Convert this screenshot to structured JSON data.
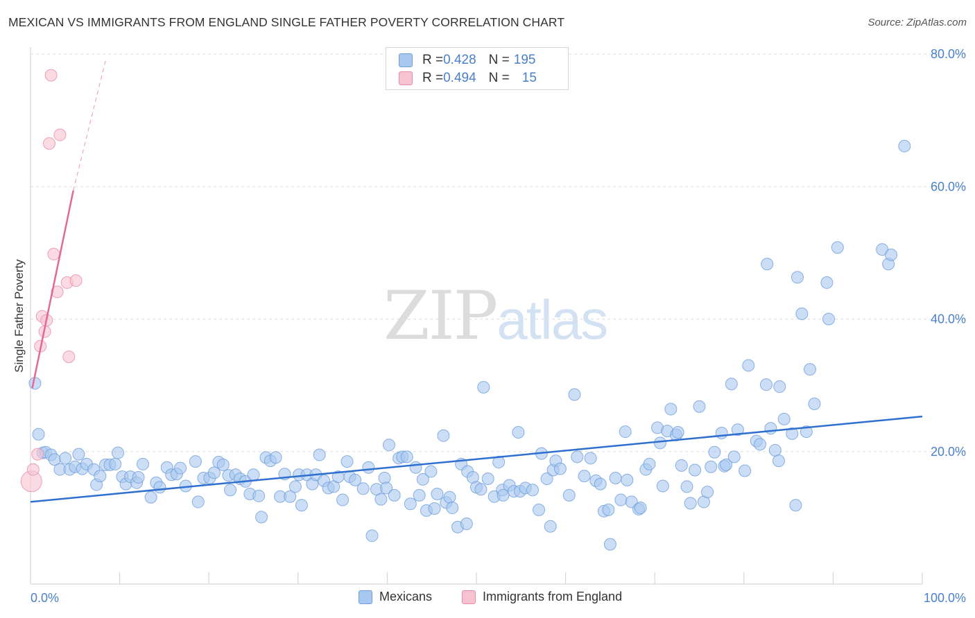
{
  "title": "MEXICAN VS IMMIGRANTS FROM ENGLAND SINGLE FATHER POVERTY CORRELATION CHART",
  "source": "Source: ZipAtlas.com",
  "watermark": {
    "zip": "ZIP",
    "atlas": "atlas"
  },
  "legend": {
    "rows": [
      {
        "r_label": "R = ",
        "r_value": "0.428",
        "n_label": "N = ",
        "n_value": "195",
        "color": "#a9c8ef",
        "border": "#6f9ddb"
      },
      {
        "r_label": "R = ",
        "r_value": "0.494",
        "n_label": "N = ",
        "n_value": "15",
        "color": "#f7c3d2",
        "border": "#e98aa7"
      }
    ]
  },
  "bottom_legend": [
    {
      "label": "Mexicans",
      "color": "#a9c8ef",
      "border": "#6f9ddb"
    },
    {
      "label": "Immigrants from England",
      "color": "#f7c3d2",
      "border": "#e98aa7"
    }
  ],
  "chart_data": {
    "type": "scatter",
    "title": "MEXICAN VS IMMIGRANTS FROM ENGLAND SINGLE FATHER POVERTY CORRELATION CHART",
    "xlabel": "",
    "ylabel": "Single Father Poverty",
    "xlim": [
      0,
      100
    ],
    "ylim": [
      0,
      80
    ],
    "x_tick_labels": [
      "0.0%",
      "100.0%"
    ],
    "y_ticks": [
      20,
      40,
      60,
      80
    ],
    "y_tick_labels": [
      "20.0%",
      "40.0%",
      "60.0%",
      "80.0%"
    ],
    "grid": "horizontal dashed",
    "legend_placement": "top-center",
    "series": [
      {
        "name": "Mexicans",
        "color": "#a9c8ef",
        "edge": "#6f9ddb",
        "trend": {
          "x": [
            0,
            100
          ],
          "y": [
            12.4,
            25.3
          ],
          "color": "#2f6fd0"
        },
        "points": [
          [
            0.5,
            30.3
          ],
          [
            0.9,
            22.6
          ],
          [
            1.4,
            19.8
          ],
          [
            1.7,
            19.9
          ],
          [
            2.3,
            19.5
          ],
          [
            2.7,
            18.8
          ],
          [
            3.3,
            17.3
          ],
          [
            3.9,
            19.0
          ],
          [
            4.4,
            17.3
          ],
          [
            5.0,
            17.7
          ],
          [
            5.4,
            19.6
          ],
          [
            5.8,
            17.4
          ],
          [
            6.3,
            18.1
          ],
          [
            7.1,
            17.3
          ],
          [
            7.4,
            15.0
          ],
          [
            7.8,
            16.3
          ],
          [
            8.4,
            18.0
          ],
          [
            8.9,
            18.0
          ],
          [
            9.5,
            18.1
          ],
          [
            9.8,
            19.8
          ],
          [
            10.3,
            16.2
          ],
          [
            10.7,
            15.1
          ],
          [
            11.2,
            16.2
          ],
          [
            11.9,
            15.3
          ],
          [
            12.1,
            16.1
          ],
          [
            12.6,
            18.1
          ],
          [
            13.5,
            13.1
          ],
          [
            14.1,
            15.3
          ],
          [
            14.5,
            14.6
          ],
          [
            15.3,
            17.6
          ],
          [
            15.8,
            16.5
          ],
          [
            16.4,
            16.6
          ],
          [
            16.8,
            17.5
          ],
          [
            17.4,
            14.8
          ],
          [
            18.5,
            18.5
          ],
          [
            18.8,
            12.4
          ],
          [
            19.4,
            16.0
          ],
          [
            20.1,
            16.0
          ],
          [
            20.6,
            16.8
          ],
          [
            21.1,
            18.4
          ],
          [
            21.6,
            18.0
          ],
          [
            22.2,
            16.4
          ],
          [
            22.4,
            14.2
          ],
          [
            23.0,
            16.5
          ],
          [
            23.5,
            15.9
          ],
          [
            24.1,
            15.5
          ],
          [
            24.6,
            13.6
          ],
          [
            25.0,
            16.5
          ],
          [
            25.6,
            13.3
          ],
          [
            25.9,
            10.1
          ],
          [
            26.4,
            19.1
          ],
          [
            26.9,
            18.6
          ],
          [
            27.5,
            19.1
          ],
          [
            28.0,
            13.2
          ],
          [
            28.5,
            16.6
          ],
          [
            29.1,
            13.2
          ],
          [
            29.7,
            14.7
          ],
          [
            30.1,
            16.5
          ],
          [
            30.4,
            11.9
          ],
          [
            31.0,
            16.5
          ],
          [
            31.6,
            15.1
          ],
          [
            32.0,
            16.5
          ],
          [
            32.4,
            19.5
          ],
          [
            32.9,
            15.6
          ],
          [
            33.4,
            14.5
          ],
          [
            34.0,
            14.7
          ],
          [
            34.5,
            16.2
          ],
          [
            35.0,
            12.7
          ],
          [
            35.5,
            18.5
          ],
          [
            35.8,
            16.2
          ],
          [
            36.4,
            15.7
          ],
          [
            37.3,
            14.4
          ],
          [
            37.9,
            17.6
          ],
          [
            38.3,
            7.3
          ],
          [
            38.8,
            14.3
          ],
          [
            39.3,
            12.8
          ],
          [
            39.7,
            16.0
          ],
          [
            39.9,
            14.5
          ],
          [
            40.2,
            21.0
          ],
          [
            40.8,
            13.4
          ],
          [
            41.3,
            19.0
          ],
          [
            41.7,
            19.2
          ],
          [
            42.2,
            19.2
          ],
          [
            42.6,
            12.1
          ],
          [
            43.2,
            17.6
          ],
          [
            43.6,
            13.4
          ],
          [
            44.0,
            15.8
          ],
          [
            44.4,
            11.1
          ],
          [
            44.9,
            17.0
          ],
          [
            45.3,
            11.4
          ],
          [
            45.6,
            13.6
          ],
          [
            46.3,
            22.4
          ],
          [
            46.6,
            12.3
          ],
          [
            47.0,
            13.1
          ],
          [
            47.3,
            11.5
          ],
          [
            47.9,
            8.6
          ],
          [
            48.3,
            18.1
          ],
          [
            48.9,
            9.1
          ],
          [
            49.0,
            17.0
          ],
          [
            49.6,
            16.1
          ],
          [
            50.0,
            14.6
          ],
          [
            50.5,
            14.3
          ],
          [
            50.8,
            29.7
          ],
          [
            51.3,
            15.9
          ],
          [
            52.0,
            13.2
          ],
          [
            52.5,
            18.4
          ],
          [
            52.9,
            14.2
          ],
          [
            53.0,
            13.4
          ],
          [
            53.7,
            14.9
          ],
          [
            54.2,
            14.0
          ],
          [
            54.7,
            22.9
          ],
          [
            54.9,
            14.0
          ],
          [
            55.5,
            14.5
          ],
          [
            56.3,
            14.2
          ],
          [
            57.0,
            11.2
          ],
          [
            57.3,
            19.7
          ],
          [
            57.9,
            15.9
          ],
          [
            58.3,
            8.7
          ],
          [
            58.6,
            17.2
          ],
          [
            58.9,
            18.6
          ],
          [
            59.4,
            17.4
          ],
          [
            60.4,
            13.4
          ],
          [
            61.0,
            28.6
          ],
          [
            61.3,
            19.2
          ],
          [
            62.1,
            16.3
          ],
          [
            62.8,
            19.0
          ],
          [
            63.4,
            15.6
          ],
          [
            63.9,
            15.1
          ],
          [
            64.3,
            11.0
          ],
          [
            64.8,
            11.2
          ],
          [
            65.0,
            6.0
          ],
          [
            65.6,
            16.0
          ],
          [
            66.2,
            12.7
          ],
          [
            66.7,
            23.0
          ],
          [
            66.9,
            15.7
          ],
          [
            67.4,
            12.4
          ],
          [
            68.2,
            11.3
          ],
          [
            68.4,
            11.5
          ],
          [
            69.0,
            17.3
          ],
          [
            69.4,
            18.1
          ],
          [
            70.3,
            23.6
          ],
          [
            70.6,
            21.3
          ],
          [
            70.9,
            14.8
          ],
          [
            71.4,
            23.1
          ],
          [
            71.8,
            26.4
          ],
          [
            72.4,
            22.5
          ],
          [
            72.6,
            22.9
          ],
          [
            73.0,
            17.9
          ],
          [
            73.6,
            14.7
          ],
          [
            74.0,
            12.2
          ],
          [
            74.5,
            17.2
          ],
          [
            75.0,
            26.8
          ],
          [
            75.5,
            12.4
          ],
          [
            75.9,
            13.9
          ],
          [
            76.3,
            17.7
          ],
          [
            76.7,
            19.9
          ],
          [
            77.5,
            22.8
          ],
          [
            77.8,
            17.8
          ],
          [
            78.0,
            18.0
          ],
          [
            78.6,
            30.2
          ],
          [
            78.9,
            19.2
          ],
          [
            79.3,
            23.3
          ],
          [
            80.1,
            17.1
          ],
          [
            80.5,
            33.0
          ],
          [
            81.4,
            21.6
          ],
          [
            81.8,
            21.1
          ],
          [
            82.5,
            30.1
          ],
          [
            82.6,
            48.3
          ],
          [
            83.0,
            23.5
          ],
          [
            83.5,
            20.2
          ],
          [
            83.9,
            18.6
          ],
          [
            84.0,
            29.8
          ],
          [
            84.5,
            24.9
          ],
          [
            85.4,
            22.7
          ],
          [
            85.8,
            11.9
          ],
          [
            86.0,
            46.3
          ],
          [
            86.5,
            40.8
          ],
          [
            87.0,
            23.0
          ],
          [
            87.4,
            32.4
          ],
          [
            87.9,
            27.2
          ],
          [
            89.3,
            45.5
          ],
          [
            89.5,
            40.0
          ],
          [
            90.5,
            50.8
          ],
          [
            95.5,
            50.5
          ],
          [
            96.2,
            48.3
          ],
          [
            96.5,
            49.7
          ],
          [
            98.0,
            66.1
          ]
        ]
      },
      {
        "name": "Immigrants from England",
        "color": "#f7c3d2",
        "edge": "#e98aa7",
        "trend": {
          "x": [
            0.2,
            4.8
          ],
          "y": [
            29.6,
            59.4
          ],
          "color": "#e2689a",
          "dash_to": [
            8.5,
            79.5
          ]
        },
        "points": [
          [
            0.1,
            15.5
          ],
          [
            0.3,
            17.3
          ],
          [
            0.8,
            19.6
          ],
          [
            1.1,
            35.9
          ],
          [
            1.3,
            40.4
          ],
          [
            1.8,
            39.8
          ],
          [
            1.6,
            38.1
          ],
          [
            2.1,
            66.5
          ],
          [
            2.3,
            76.8
          ],
          [
            2.6,
            49.8
          ],
          [
            3.0,
            44.1
          ],
          [
            3.3,
            67.8
          ],
          [
            4.1,
            45.5
          ],
          [
            4.3,
            34.3
          ],
          [
            5.1,
            45.8
          ]
        ]
      }
    ]
  }
}
